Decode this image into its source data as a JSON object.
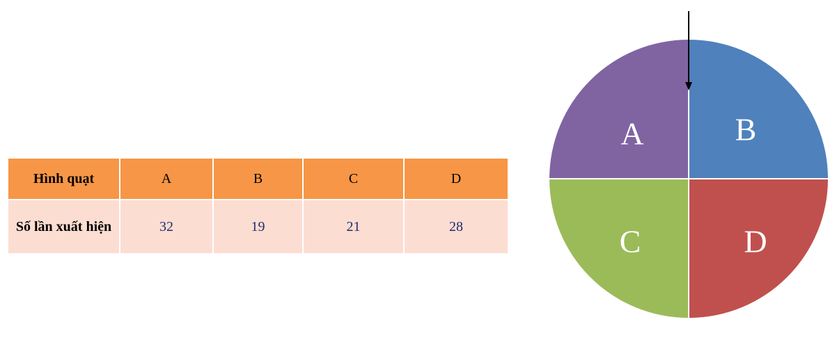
{
  "table": {
    "header": [
      "Hình quạt",
      "A",
      "B",
      "C",
      "D"
    ],
    "rows": [
      [
        "Số lần xuất hiện",
        32,
        19,
        21,
        28
      ]
    ]
  },
  "wheel": {
    "sectors": [
      "A",
      "B",
      "C",
      "D"
    ]
  }
}
